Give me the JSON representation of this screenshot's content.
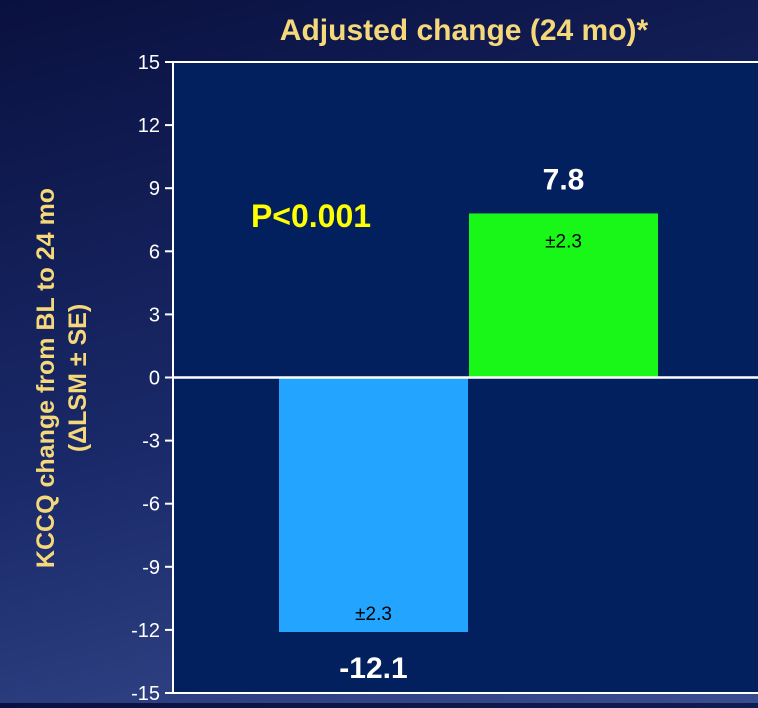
{
  "chart_data": {
    "type": "bar",
    "title": "Adjusted change (24 mo)*",
    "ylabel_line1": "KCCQ change from BL to 24 mo",
    "ylabel_line2": "(ΔLSM ± SE)",
    "categories": [
      "",
      ""
    ],
    "values": [
      -12.1,
      7.8
    ],
    "value_labels": [
      "-12.1",
      "7.8"
    ],
    "error_labels": [
      "±2.3",
      "±2.3"
    ],
    "ylim": [
      -15,
      15
    ],
    "yticks": [
      15,
      12,
      9,
      6,
      3,
      0,
      -3,
      -6,
      -9,
      -12,
      -15
    ],
    "annotation": "P<0.001",
    "grid": false
  },
  "colors": {
    "plot_bg": "#03205e",
    "title": "#f4d87a",
    "ylabel": "#f4d87a",
    "annotation": "#ffff00",
    "axis": "#ffffff",
    "bars": [
      "#22a4ff",
      "#18f718"
    ]
  }
}
